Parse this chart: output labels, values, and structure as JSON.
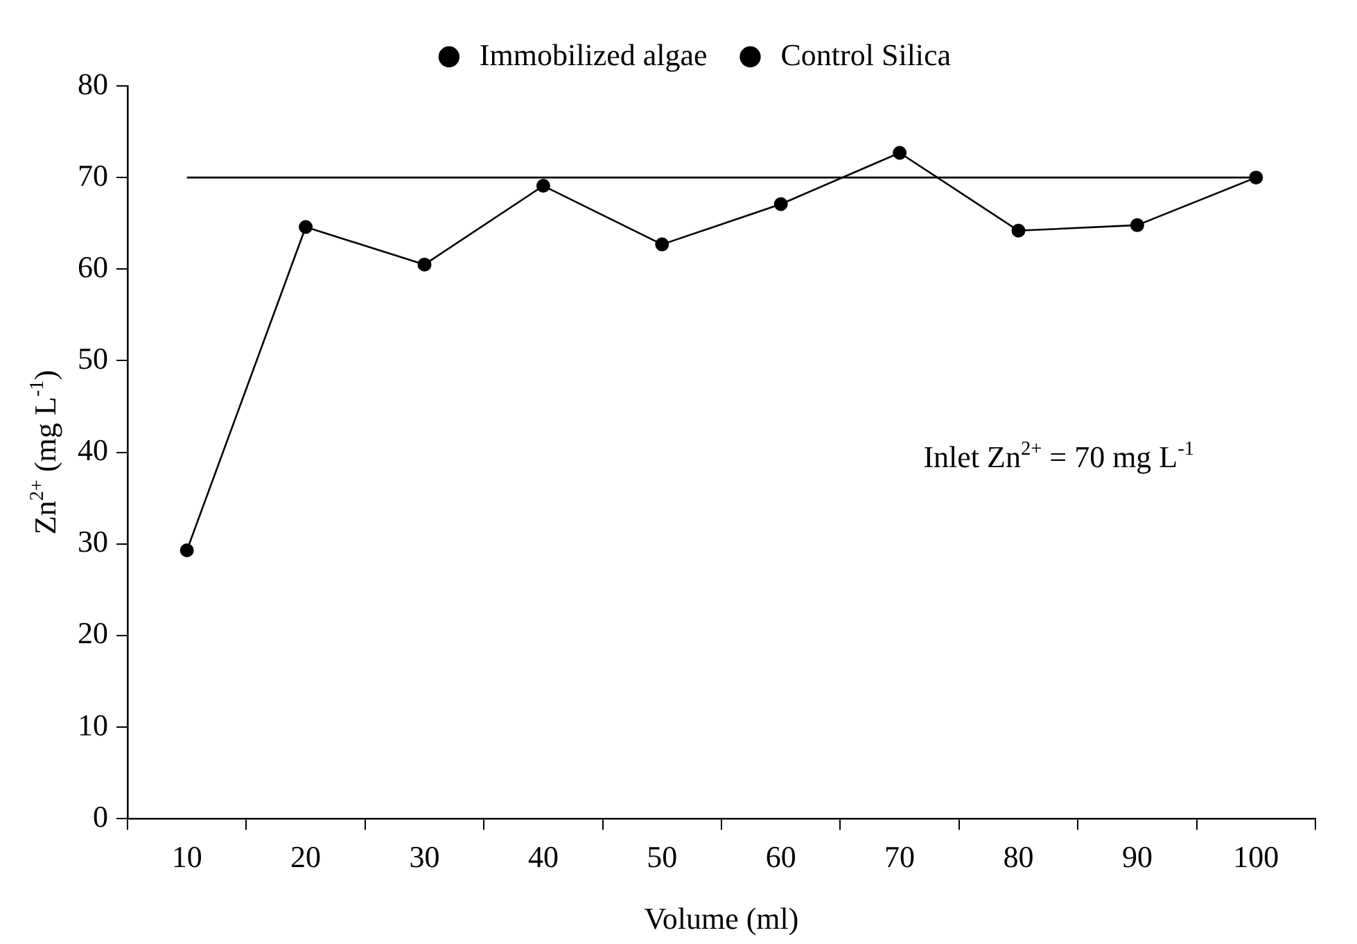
{
  "chart_data": {
    "type": "line",
    "xlabel": "Volume (ml)",
    "ylabel": "Zn$^{2+}$ (mg L$^{-1}$)",
    "categories": [
      "10",
      "20",
      "30",
      "40",
      "50",
      "60",
      "70",
      "80",
      "90",
      "100"
    ],
    "series": [
      {
        "name": "Immobilized algae",
        "color": "#000000",
        "marker": "circle",
        "values": [
          29.3,
          64.6,
          60.5,
          69.1,
          62.7,
          67.1,
          72.7,
          64.2,
          64.8,
          70.0
        ]
      },
      {
        "name": "Control Silica",
        "color": "#000000",
        "marker": "none",
        "values": [
          70,
          70,
          70,
          70,
          70,
          70,
          70,
          70,
          70,
          70
        ]
      }
    ],
    "ylim": [
      0,
      80
    ],
    "yticks": [
      0,
      10,
      20,
      30,
      40,
      50,
      60,
      70,
      80
    ],
    "grid": false,
    "legend": "top",
    "annotations": [
      "Inlet Zn$^{2+}$ = 70 mg L$^{-1}$"
    ]
  }
}
